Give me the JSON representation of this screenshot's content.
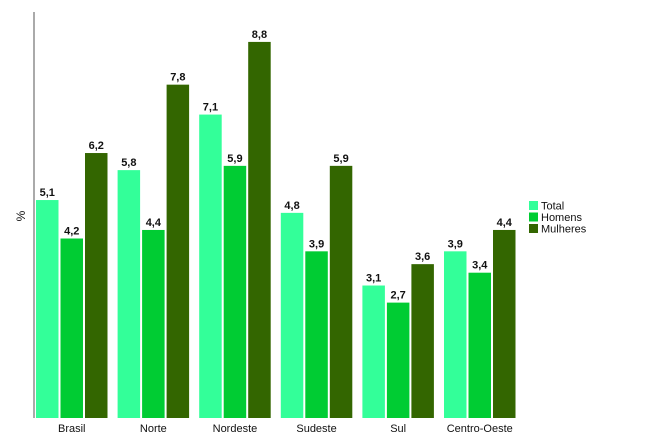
{
  "chart_data": {
    "type": "bar",
    "ylabel": "%",
    "xlabel": "",
    "ylim": [
      0,
      9.5
    ],
    "grid": false,
    "legend_position": "right",
    "categories": [
      "Brasil",
      "Norte",
      "Nordeste",
      "Sudeste",
      "Sul",
      "Centro-Oeste"
    ],
    "series": [
      {
        "name": "Total",
        "color": "#33ff99",
        "values": [
          5.1,
          5.8,
          7.1,
          4.8,
          3.1,
          3.9
        ]
      },
      {
        "name": "Homens",
        "color": "#00cc33",
        "values": [
          4.2,
          4.4,
          5.9,
          3.9,
          2.7,
          3.4
        ]
      },
      {
        "name": "Mulheres",
        "color": "#336600",
        "values": [
          6.2,
          7.8,
          8.8,
          5.9,
          3.6,
          4.4
        ]
      }
    ],
    "data_labels": [
      [
        "5,1",
        "4,2",
        "6,2"
      ],
      [
        "5,8",
        "4,4",
        "7,8"
      ],
      [
        "7,1",
        "5,9",
        "8,8"
      ],
      [
        "4,8",
        "3,9",
        "5,9"
      ],
      [
        "3,1",
        "2,7",
        "3,6"
      ],
      [
        "3,9",
        "3,4",
        "4,4"
      ]
    ]
  }
}
